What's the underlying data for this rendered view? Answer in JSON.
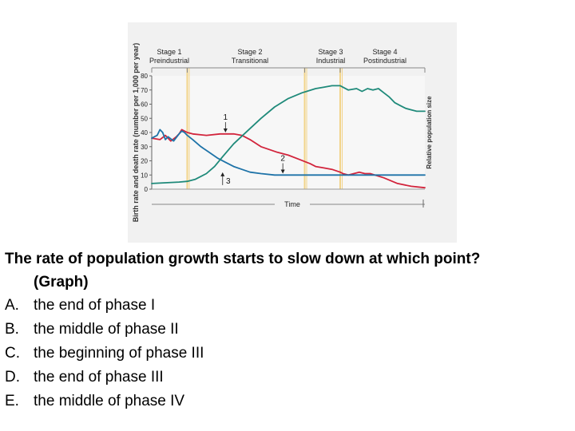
{
  "chart_data": {
    "type": "line",
    "ylabel": "Birth rate and death rate (number per 1,000 per year)",
    "y2label": "Relative population size",
    "xlabel": "Time",
    "ylim": [
      0,
      80
    ],
    "yticks": [
      0,
      10,
      20,
      30,
      40,
      50,
      60,
      70,
      80
    ],
    "stages": [
      {
        "name": "Stage 1",
        "label": "Preindustrial"
      },
      {
        "name": "Stage 2",
        "label": "Transitional"
      },
      {
        "name": "Stage 3",
        "label": "Industrial"
      },
      {
        "name": "Stage 4",
        "label": "Postindustrial"
      }
    ],
    "stage_bounds": [
      0,
      13,
      56,
      69,
      100
    ],
    "annotations": [
      {
        "text": "1",
        "x": 27,
        "y": 49
      },
      {
        "text": "2",
        "x": 48,
        "y": 20
      },
      {
        "text": "3",
        "x": 28,
        "y": 4
      }
    ],
    "series": [
      {
        "id": "birth",
        "color": "#d2243c",
        "x": [
          0,
          3,
          5,
          7,
          9,
          10,
          11,
          12,
          13,
          15,
          20,
          25,
          30,
          33,
          36,
          40,
          43,
          46,
          50,
          54,
          58,
          60,
          63,
          66,
          69,
          70,
          72,
          74,
          76,
          78,
          80,
          85,
          90,
          95,
          100
        ],
        "y": [
          36,
          35,
          38,
          34,
          37,
          39,
          42,
          41,
          40,
          39,
          38,
          39,
          39,
          38,
          35,
          30,
          28,
          26,
          24,
          21,
          18,
          16,
          15,
          14,
          12,
          11,
          10,
          11,
          12,
          11,
          11,
          8,
          4,
          2,
          1
        ]
      },
      {
        "id": "death",
        "color": "#1e73a8",
        "x": [
          0,
          2,
          3,
          4,
          5,
          6,
          8,
          10,
          11,
          12,
          13,
          15,
          18,
          21,
          24,
          27,
          30,
          33,
          36,
          40,
          45,
          50,
          60,
          70,
          80,
          90,
          100
        ],
        "y": [
          36,
          38,
          42,
          40,
          35,
          37,
          34,
          39,
          41,
          40,
          38,
          35,
          30,
          26,
          22,
          19,
          16,
          14,
          12,
          11,
          10,
          10,
          10,
          10,
          10,
          10,
          10
        ]
      },
      {
        "id": "population",
        "color": "#1f8a7a",
        "x": [
          0,
          5,
          10,
          13,
          16,
          20,
          23,
          26,
          30,
          35,
          40,
          45,
          50,
          55,
          60,
          63,
          66,
          69,
          72,
          75,
          77,
          79,
          81,
          83,
          85,
          87,
          89,
          91,
          93,
          95,
          97,
          100
        ],
        "y": [
          4,
          4.5,
          5,
          5.5,
          7,
          11,
          16,
          23,
          32,
          41,
          50,
          58,
          64,
          68,
          71,
          72,
          73,
          73,
          70,
          71,
          69,
          71,
          70,
          71,
          68,
          65,
          61,
          59,
          57,
          56,
          55,
          55
        ]
      }
    ]
  },
  "question": {
    "stem": "The rate of population growth starts to slow down at which point?",
    "stem_cont": "(Graph)",
    "options": [
      {
        "letter": "A.",
        "text": "the end of phase I"
      },
      {
        "letter": "B.",
        "text": "the middle of phase II"
      },
      {
        "letter": "C.",
        "text": "the beginning of phase III"
      },
      {
        "letter": "D.",
        "text": "the end of phase III"
      },
      {
        "letter": "E.",
        "text": "the middle of phase IV"
      }
    ]
  }
}
